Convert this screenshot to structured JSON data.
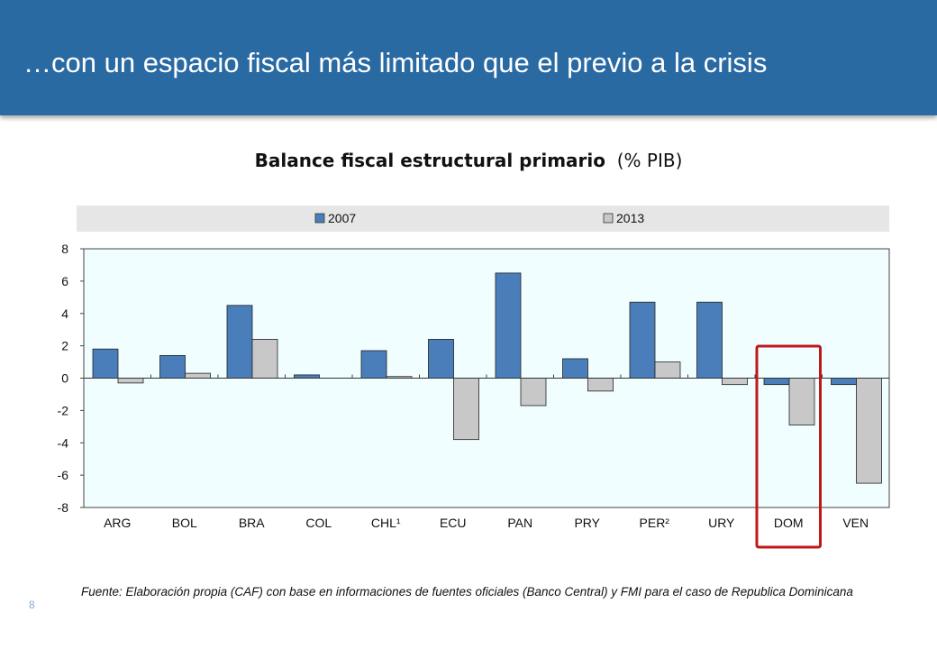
{
  "header": {
    "title": "…con un espacio fiscal más limitado que el previo a la crisis"
  },
  "chart_title": {
    "bold": "Balance fiscal estructural primario",
    "unit": "(% PIB)"
  },
  "colors": {
    "header_bg": "#2a6aa3",
    "series_2007": "#4a7ebb",
    "series_2013": "#c8c8c8",
    "plot_bg": "#f0feff",
    "legend_bg": "#e6e6e6",
    "highlight": "#c01818"
  },
  "chart_data": {
    "type": "bar",
    "categories": [
      "ARG",
      "BOL",
      "BRA",
      "COL",
      "CHL¹",
      "ECU",
      "PAN",
      "PRY",
      "PER²",
      "URY",
      "DOM",
      "VEN"
    ],
    "series": [
      {
        "name": "2007",
        "values": [
          1.8,
          1.4,
          4.5,
          0.2,
          1.7,
          2.4,
          6.5,
          1.2,
          4.7,
          4.7,
          -0.4,
          -0.4
        ]
      },
      {
        "name": "2013",
        "values": [
          -0.3,
          0.3,
          2.4,
          0.0,
          0.1,
          -3.8,
          -1.7,
          -0.8,
          1.0,
          -0.4,
          -2.9,
          -6.5
        ]
      }
    ],
    "ylim": [
      -8,
      8
    ],
    "yticks": [
      8,
      6,
      4,
      2,
      0,
      -2,
      -4,
      -6,
      -8
    ],
    "legend_position": "top",
    "highlight_category": "DOM",
    "grid": false
  },
  "footnote": "Fuente:  Elaboración propia (CAF) con base en  informaciones de fuentes oficiales (Banco Central) y FMI para el caso de Republica Dominicana",
  "page_number": "8"
}
